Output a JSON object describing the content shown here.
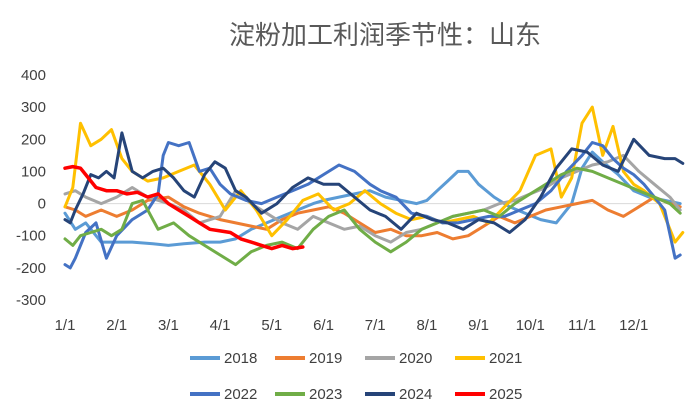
{
  "chart_data": {
    "type": "line",
    "title": "淀粉加工利润季节性：山东",
    "xlabel": "",
    "ylabel": "",
    "ylim": [
      -300,
      400
    ],
    "yticks": [
      400,
      300,
      200,
      100,
      0,
      -100,
      -200,
      -300
    ],
    "xticks": [
      "1/1",
      "2/1",
      "3/1",
      "4/1",
      "5/1",
      "6/1",
      "7/1",
      "8/1",
      "9/1",
      "10/1",
      "11/1",
      "12/1"
    ],
    "x_unit": "month",
    "legend_position": "bottom",
    "series": [
      {
        "name": "2018",
        "color": "#5B9BD5",
        "x": [
          0,
          0.2,
          0.4,
          0.7,
          1,
          1.3,
          1.7,
          2,
          2.3,
          2.7,
          3,
          3.3,
          3.6,
          3.9,
          4.2,
          4.5,
          4.8,
          5,
          5.3,
          5.6,
          5.9,
          6.2,
          6.5,
          6.8,
          7,
          7.2,
          7.4,
          7.6,
          7.8,
          8,
          8.3,
          8.6,
          8.9,
          9.2,
          9.5,
          9.8,
          10,
          10.2,
          10.4,
          10.7,
          11,
          11.3,
          11.6,
          11.9
        ],
        "values": [
          -30,
          -80,
          -60,
          -120,
          -120,
          -120,
          -125,
          -130,
          -125,
          -120,
          -120,
          -110,
          -80,
          -60,
          -40,
          -20,
          0,
          10,
          20,
          30,
          40,
          20,
          10,
          0,
          10,
          40,
          70,
          100,
          100,
          60,
          20,
          -10,
          -30,
          -50,
          -60,
          0,
          110,
          160,
          130,
          90,
          40,
          20,
          10,
          0
        ]
      },
      {
        "name": "2019",
        "color": "#ED7D31",
        "x": [
          0,
          0.2,
          0.4,
          0.7,
          1,
          1.3,
          1.6,
          2,
          2.3,
          2.6,
          3,
          3.3,
          3.6,
          3.9,
          4.2,
          4.5,
          4.8,
          5.1,
          5.4,
          5.7,
          6,
          6.3,
          6.6,
          6.9,
          7.2,
          7.5,
          7.8,
          8.1,
          8.4,
          8.7,
          9,
          9.3,
          9.6,
          9.9,
          10.2,
          10.5,
          10.8,
          11.1,
          11.4,
          11.7,
          11.9
        ],
        "values": [
          -10,
          -20,
          -40,
          -20,
          -40,
          -20,
          10,
          20,
          -10,
          -30,
          -50,
          -60,
          -70,
          -80,
          -50,
          -30,
          -20,
          -10,
          -30,
          -60,
          -90,
          -80,
          -100,
          -100,
          -90,
          -110,
          -100,
          -70,
          -40,
          -60,
          -40,
          -20,
          -10,
          0,
          10,
          -20,
          -40,
          -10,
          20,
          0,
          -10
        ]
      },
      {
        "name": "2020",
        "color": "#A5A5A5",
        "x": [
          0,
          0.2,
          0.4,
          0.7,
          1,
          1.3,
          1.6,
          2,
          2.3,
          2.6,
          3,
          3.3,
          3.6,
          3.9,
          4.2,
          4.5,
          4.8,
          5.1,
          5.4,
          5.7,
          6,
          6.3,
          6.6,
          6.9,
          7.2,
          7.5,
          7.8,
          8.1,
          8.4,
          8.7,
          9,
          9.3,
          9.6,
          9.9,
          10.2,
          10.5,
          10.8,
          11.1,
          11.4,
          11.7,
          11.9
        ],
        "values": [
          30,
          40,
          20,
          0,
          20,
          50,
          20,
          0,
          -20,
          -60,
          -40,
          40,
          0,
          -30,
          -60,
          -80,
          -40,
          -60,
          -80,
          -70,
          -100,
          -120,
          -90,
          -80,
          -60,
          -40,
          -30,
          -20,
          0,
          10,
          30,
          50,
          80,
          100,
          120,
          130,
          150,
          100,
          60,
          20,
          -20
        ]
      },
      {
        "name": "2021",
        "color": "#FFC000",
        "x": [
          0,
          0.15,
          0.3,
          0.5,
          0.7,
          0.9,
          1.1,
          1.3,
          1.6,
          1.9,
          2.2,
          2.5,
          2.8,
          3.1,
          3.4,
          3.7,
          4,
          4.3,
          4.6,
          4.9,
          5.2,
          5.5,
          5.8,
          6.1,
          6.4,
          6.7,
          7,
          7.3,
          7.6,
          7.9,
          8.2,
          8.5,
          8.8,
          9.1,
          9.4,
          9.6,
          9.8,
          10,
          10.2,
          10.4,
          10.6,
          10.8,
          11,
          11.2,
          11.5,
          11.8,
          11.95
        ],
        "values": [
          -10,
          50,
          250,
          180,
          200,
          230,
          140,
          100,
          70,
          80,
          100,
          120,
          60,
          -20,
          40,
          -20,
          -100,
          -50,
          10,
          30,
          -20,
          0,
          40,
          0,
          -30,
          -50,
          -40,
          -60,
          -50,
          -40,
          -60,
          -10,
          40,
          150,
          170,
          20,
          80,
          250,
          300,
          150,
          240,
          100,
          60,
          40,
          0,
          -120,
          -90
        ]
      },
      {
        "name": "2022",
        "color": "#4472C4",
        "x": [
          0,
          0.1,
          0.2,
          0.4,
          0.6,
          0.8,
          1,
          1.3,
          1.6,
          1.8,
          1.9,
          2,
          2.2,
          2.4,
          2.6,
          2.8,
          3,
          3.2,
          3.5,
          3.8,
          4.1,
          4.4,
          4.7,
          5,
          5.3,
          5.6,
          5.9,
          6.1,
          6.4,
          6.7,
          7,
          7.3,
          7.6,
          7.9,
          8.2,
          8.5,
          8.8,
          9.1,
          9.4,
          9.7,
          10,
          10.2,
          10.4,
          10.6,
          10.8,
          11,
          11.2,
          11.4,
          11.6,
          11.8,
          11.9
        ],
        "values": [
          -190,
          -200,
          -170,
          -90,
          -60,
          -170,
          -100,
          -50,
          -20,
          30,
          150,
          190,
          180,
          190,
          100,
          110,
          60,
          30,
          10,
          0,
          20,
          40,
          60,
          90,
          120,
          100,
          60,
          40,
          20,
          -30,
          -40,
          -60,
          -60,
          -50,
          -40,
          -40,
          -20,
          0,
          40,
          100,
          150,
          190,
          180,
          140,
          110,
          90,
          60,
          20,
          -20,
          -170,
          -160
        ]
      },
      {
        "name": "2023",
        "color": "#70AD47",
        "x": [
          0,
          0.15,
          0.3,
          0.5,
          0.7,
          0.9,
          1.1,
          1.3,
          1.5,
          1.8,
          2.1,
          2.4,
          2.7,
          3,
          3.3,
          3.6,
          3.9,
          4.2,
          4.5,
          4.8,
          5.1,
          5.4,
          5.7,
          6,
          6.3,
          6.6,
          6.9,
          7.2,
          7.5,
          7.8,
          8.1,
          8.4,
          8.7,
          9,
          9.3,
          9.6,
          9.9,
          10.2,
          10.5,
          10.8,
          11.1,
          11.4,
          11.7,
          11.9
        ],
        "values": [
          -110,
          -130,
          -100,
          -90,
          -80,
          -100,
          -80,
          0,
          10,
          -80,
          -60,
          -100,
          -130,
          -160,
          -190,
          -150,
          -130,
          -120,
          -140,
          -80,
          -40,
          -20,
          -80,
          -120,
          -150,
          -120,
          -80,
          -60,
          -40,
          -30,
          -20,
          -40,
          0,
          30,
          60,
          90,
          110,
          100,
          80,
          60,
          40,
          20,
          0,
          -30
        ]
      },
      {
        "name": "2024",
        "color": "#264478",
        "x": [
          0,
          0.1,
          0.2,
          0.35,
          0.5,
          0.65,
          0.8,
          0.95,
          1.1,
          1.3,
          1.5,
          1.7,
          1.9,
          2.1,
          2.3,
          2.5,
          2.7,
          2.9,
          3.1,
          3.3,
          3.5,
          3.8,
          4.1,
          4.4,
          4.7,
          5,
          5.3,
          5.6,
          5.9,
          6.2,
          6.5,
          6.8,
          7.1,
          7.4,
          7.7,
          8,
          8.3,
          8.6,
          8.9,
          9.2,
          9.5,
          9.8,
          10.1,
          10.4,
          10.7,
          11,
          11.3,
          11.6,
          11.8,
          11.95
        ],
        "values": [
          -50,
          -60,
          -20,
          30,
          90,
          80,
          100,
          80,
          220,
          100,
          80,
          100,
          110,
          80,
          40,
          20,
          90,
          130,
          110,
          40,
          20,
          -30,
          0,
          50,
          80,
          60,
          60,
          20,
          -20,
          -40,
          -80,
          -30,
          -50,
          -60,
          -80,
          -50,
          -60,
          -90,
          -50,
          20,
          110,
          170,
          160,
          120,
          100,
          200,
          150,
          140,
          140,
          125
        ]
      },
      {
        "name": "2025",
        "color": "#FF0000",
        "x": [
          0,
          0.15,
          0.3,
          0.45,
          0.6,
          0.8,
          1,
          1.2,
          1.4,
          1.6,
          1.8,
          2,
          2.2,
          2.4,
          2.6,
          2.8,
          3,
          3.2,
          3.4,
          3.6,
          3.8,
          4,
          4.2,
          4.4,
          4.6
        ],
        "values": [
          110,
          115,
          110,
          80,
          50,
          40,
          40,
          30,
          35,
          20,
          30,
          0,
          -20,
          -40,
          -60,
          -80,
          -85,
          -90,
          -110,
          -120,
          -130,
          -140,
          -130,
          -140,
          -135
        ]
      }
    ]
  }
}
